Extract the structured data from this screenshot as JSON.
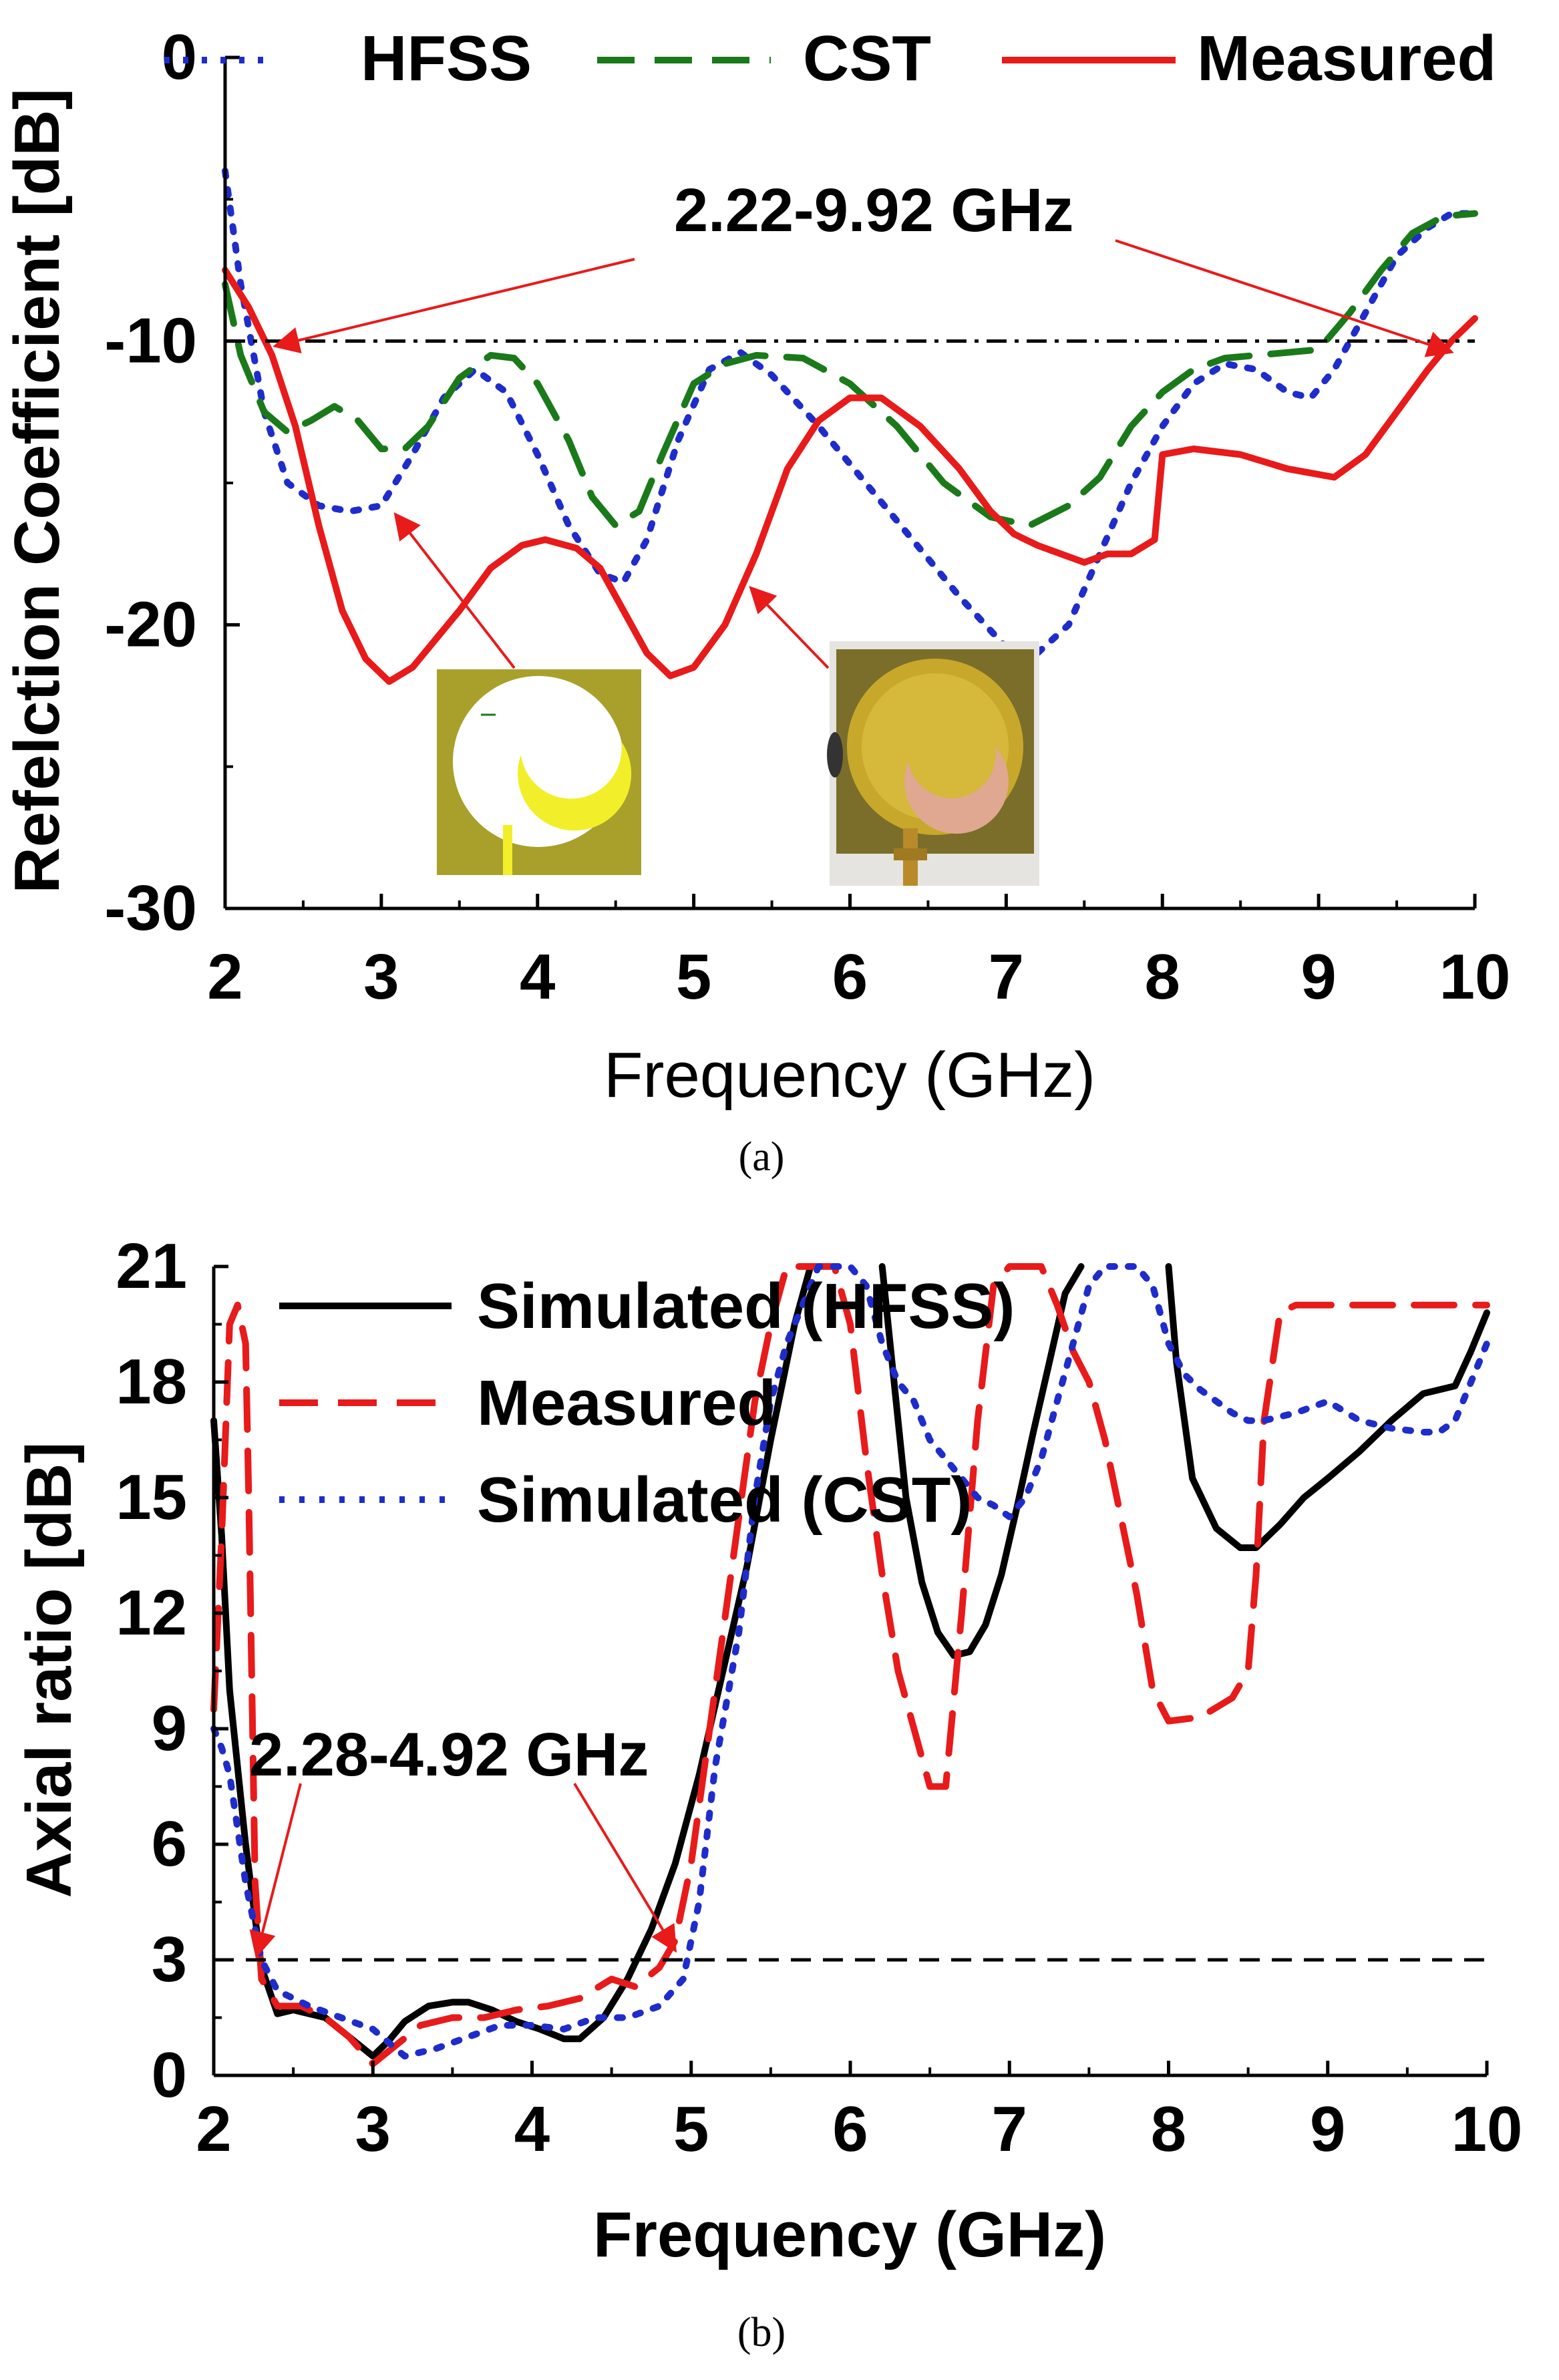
{
  "chart_data": [
    {
      "type": "line",
      "panel_caption": "(a)",
      "xlabel": "Frequency (GHz)",
      "ylabel": "Refelction Coefficient [dB]",
      "xlim": [
        2,
        10
      ],
      "ylim": [
        -30,
        0
      ],
      "xticks": [
        "2",
        "3",
        "4",
        "5",
        "6",
        "7",
        "8",
        "9",
        "10"
      ],
      "yticks": [
        "0",
        "-10",
        "-20",
        "-30"
      ],
      "reference_line": {
        "y": -10,
        "style": "dash-dot"
      },
      "annotation": "2.22-9.92 GHz",
      "annotation_arrows_to": [
        [
          2.22,
          -10
        ],
        [
          9.92,
          -10
        ]
      ],
      "insets": [
        "simulated-antenna-layout",
        "fabricated-antenna-photo"
      ],
      "legend": [
        "HFSS",
        "CST",
        "Measured"
      ],
      "series": [
        {
          "name": "HFSS",
          "color": "#1f2ccc",
          "style": "dotted",
          "x": [
            2.0,
            2.1,
            2.25,
            2.4,
            2.6,
            2.8,
            3.0,
            3.2,
            3.4,
            3.6,
            3.8,
            4.0,
            4.2,
            4.4,
            4.55,
            4.7,
            4.9,
            5.1,
            5.3,
            5.5,
            5.8,
            6.1,
            6.4,
            6.7,
            7.0,
            7.2,
            7.4,
            7.6,
            7.8,
            8.0,
            8.2,
            8.4,
            8.6,
            8.8,
            8.95,
            9.1,
            9.3,
            9.5,
            9.7,
            9.85,
            10.0
          ],
          "y": [
            -4,
            -8,
            -12.5,
            -15,
            -15.8,
            -16,
            -15.8,
            -14,
            -12,
            -11,
            -11.8,
            -14,
            -16.5,
            -18.2,
            -18.5,
            -17,
            -13.5,
            -11,
            -10.4,
            -11.2,
            -13,
            -15,
            -17,
            -19,
            -20.8,
            -21,
            -20,
            -17.5,
            -15,
            -13,
            -11.5,
            -10.8,
            -11,
            -11.8,
            -12,
            -11,
            -9,
            -7,
            -6,
            -5.5,
            -5.5
          ]
        },
        {
          "name": "CST",
          "color": "#1a7a1a",
          "style": "dashed",
          "x": [
            2.0,
            2.1,
            2.25,
            2.4,
            2.55,
            2.7,
            2.85,
            3.0,
            3.15,
            3.3,
            3.5,
            3.7,
            3.85,
            4.0,
            4.2,
            4.35,
            4.5,
            4.65,
            4.8,
            5.0,
            5.2,
            5.4,
            5.7,
            6.0,
            6.3,
            6.6,
            6.9,
            7.15,
            7.4,
            7.6,
            7.8,
            8.0,
            8.2,
            8.4,
            8.6,
            8.8,
            9.0,
            9.2,
            9.4,
            9.6,
            9.8,
            10.0
          ],
          "y": [
            -8,
            -10.5,
            -12.5,
            -13.2,
            -12.8,
            -12.3,
            -12.8,
            -13.8,
            -13.8,
            -13,
            -11.3,
            -10.5,
            -10.6,
            -11.5,
            -13.5,
            -15.5,
            -16.5,
            -16,
            -14,
            -11.5,
            -10.8,
            -10.5,
            -10.6,
            -11.5,
            -13,
            -15,
            -16.2,
            -16.5,
            -15.8,
            -14.8,
            -13,
            -11.8,
            -11,
            -10.6,
            -10.5,
            -10.4,
            -10.3,
            -9,
            -7.5,
            -6.2,
            -5.6,
            -5.5
          ]
        },
        {
          "name": "Measured",
          "color": "#e81a1a",
          "style": "solid",
          "x": [
            2.0,
            2.15,
            2.3,
            2.45,
            2.6,
            2.75,
            2.9,
            3.05,
            3.2,
            3.35,
            3.5,
            3.7,
            3.9,
            4.05,
            4.25,
            4.4,
            4.55,
            4.7,
            4.85,
            5.0,
            5.2,
            5.4,
            5.6,
            5.8,
            6.0,
            6.2,
            6.45,
            6.7,
            6.9,
            7.05,
            7.2,
            7.35,
            7.5,
            7.65,
            7.8,
            7.95,
            8.0,
            8.2,
            8.5,
            8.8,
            9.1,
            9.3,
            9.5,
            9.7,
            9.85,
            10.0
          ],
          "y": [
            -7.5,
            -8.8,
            -10.5,
            -13,
            -16.5,
            -19.5,
            -21.2,
            -22,
            -21.5,
            -20.5,
            -19.5,
            -18,
            -17.2,
            -17,
            -17.3,
            -18,
            -19.5,
            -21,
            -21.8,
            -21.5,
            -20,
            -17.5,
            -14.5,
            -12.8,
            -12,
            -12,
            -13,
            -14.5,
            -16,
            -16.8,
            -17.2,
            -17.5,
            -17.8,
            -17.5,
            -17.5,
            -17,
            -14,
            -13.8,
            -14,
            -14.5,
            -14.8,
            -14,
            -12.5,
            -11,
            -10,
            -9.2
          ]
        }
      ]
    },
    {
      "type": "line",
      "panel_caption": "(b)",
      "xlabel": "Frequency (GHz)",
      "ylabel": "Axial ratio [dB]",
      "xlim": [
        2,
        10
      ],
      "ylim": [
        0,
        21
      ],
      "xticks": [
        "2",
        "3",
        "4",
        "5",
        "6",
        "7",
        "8",
        "9",
        "10"
      ],
      "yticks": [
        "0",
        "3",
        "6",
        "9",
        "12",
        "15",
        "18",
        "21"
      ],
      "reference_line": {
        "y": 3,
        "style": "dashed"
      },
      "annotation": "2.28-4.92 GHz",
      "annotation_arrows_to": [
        [
          2.28,
          3
        ],
        [
          4.92,
          3
        ]
      ],
      "legend": [
        "Simulated (HFSS)",
        "Measured",
        "Simulated (CST)"
      ],
      "series": [
        {
          "name": "Simulated (HFSS)",
          "color": "#000000",
          "style": "solid",
          "segments": [
            {
              "x": [
                2.0,
                2.05,
                2.1,
                2.2,
                2.3,
                2.4,
                2.5,
                2.7,
                2.85,
                3.0,
                3.1,
                3.2,
                3.35,
                3.5,
                3.6,
                3.75,
                3.9,
                4.05,
                4.2,
                4.3,
                4.45,
                4.6,
                4.75,
                4.9,
                5.05,
                5.2,
                5.35,
                5.5,
                5.65,
                5.75,
                5.8
              ],
              "y": [
                17,
                14,
                10,
                6,
                2.8,
                1.6,
                1.7,
                1.5,
                1.0,
                0.5,
                0.9,
                1.4,
                1.8,
                1.9,
                1.9,
                1.7,
                1.4,
                1.2,
                0.95,
                0.95,
                1.5,
                2.5,
                3.8,
                5.5,
                7.8,
                10.5,
                13.2,
                16.5,
                19.5,
                21,
                21
              ]
            },
            {
              "x": [
                6.2,
                6.25,
                6.35,
                6.45,
                6.55,
                6.65,
                6.75,
                6.85,
                6.95,
                7.05,
                7.15,
                7.25,
                7.35,
                7.45
              ],
              "y": [
                21,
                19,
                15,
                12.8,
                11.5,
                10.9,
                11,
                11.7,
                13,
                14.8,
                16.7,
                18.5,
                20.3,
                21
              ]
            },
            {
              "x": [
                8.0,
                8.05,
                8.15,
                8.3,
                8.45,
                8.55,
                8.7,
                8.85,
                9.0,
                9.2,
                9.4,
                9.6,
                9.8,
                9.9,
                10.0
              ],
              "y": [
                21,
                18.5,
                15.5,
                14.2,
                13.7,
                13.7,
                14.3,
                15,
                15.5,
                16.2,
                17,
                17.7,
                17.9,
                18.8,
                19.8
              ]
            }
          ]
        },
        {
          "name": "Measured",
          "color": "#e81a1a",
          "style": "dashed",
          "segments": [
            {
              "x": [
                2.0,
                2.05,
                2.1,
                2.15,
                2.2,
                2.22,
                2.24,
                2.26,
                2.3,
                2.4,
                2.55,
                2.7,
                2.85,
                3.0,
                3.15,
                3.3,
                3.5,
                3.7,
                3.9,
                4.1,
                4.3,
                4.5,
                4.65,
                4.8,
                4.9,
                5.0,
                5.1,
                5.2,
                5.3,
                5.4,
                5.5,
                5.6,
                5.7,
                5.8,
                5.9,
                6.0,
                6.1,
                6.2,
                6.3,
                6.4,
                6.5,
                6.55,
                6.6,
                6.7,
                6.8,
                6.9,
                7.0,
                7.1,
                7.2,
                7.3,
                7.4,
                7.5,
                7.6,
                7.7,
                7.8,
                7.9,
                8.0,
                8.2,
                8.4,
                8.5,
                8.55,
                8.6,
                8.7,
                8.8,
                9.0,
                9.5,
                10.0
              ],
              "y": [
                9.5,
                14,
                19.5,
                20,
                19,
                15,
                10,
                5,
                2.5,
                1.8,
                1.8,
                1.5,
                1.0,
                0.3,
                0.8,
                1.3,
                1.5,
                1.5,
                1.7,
                1.8,
                2.0,
                2.5,
                2.3,
                2.8,
                3.5,
                5.5,
                8.5,
                11.5,
                14.5,
                17.5,
                19.5,
                21,
                21,
                21,
                21,
                19.5,
                16,
                13,
                10.5,
                9,
                7.5,
                7.5,
                7.5,
                12,
                17,
                20.5,
                21,
                21,
                21,
                20,
                18.8,
                18,
                16.5,
                14.5,
                12.5,
                10,
                9.2,
                9.3,
                9.8,
                10.5,
                13,
                17,
                19.8,
                20,
                20,
                20,
                20
              ]
            }
          ]
        },
        {
          "name": "Simulated (CST)",
          "color": "#1f2ccc",
          "style": "dotted",
          "segments": [
            {
              "x": [
                2.0,
                2.05,
                2.1,
                2.2,
                2.3,
                2.4,
                2.6,
                2.8,
                3.0,
                3.2,
                3.4,
                3.6,
                3.8,
                4.0,
                4.2,
                4.4,
                4.6,
                4.8,
                4.95,
                5.05,
                5.15,
                5.3,
                5.4,
                5.5,
                5.6,
                5.7,
                5.8,
                5.85,
                6.0,
                6.1,
                6.2,
                6.3,
                6.4,
                6.5,
                6.6,
                6.7,
                6.8,
                6.9,
                7.0,
                7.1,
                7.2,
                7.3,
                7.4,
                7.5,
                7.6,
                7.7,
                7.8,
                7.9,
                8.0,
                8.1,
                8.2,
                8.3,
                8.4,
                8.5,
                8.6,
                8.8,
                9.0,
                9.2,
                9.4,
                9.6,
                9.7,
                9.8,
                9.9,
                10.0
              ],
              "y": [
                9,
                8.5,
                7.8,
                5,
                3,
                2.2,
                1.8,
                1.5,
                1.2,
                0.5,
                0.7,
                1.0,
                1.3,
                1.3,
                1.2,
                1.5,
                1.5,
                1.8,
                2.5,
                4.5,
                8,
                11.5,
                15,
                17.5,
                19,
                20,
                21,
                21,
                21,
                20.5,
                19,
                18,
                17.5,
                16.5,
                16,
                15.5,
                15,
                14.8,
                14.5,
                15,
                16,
                17.5,
                19,
                20.5,
                21,
                21,
                21,
                20.5,
                19,
                18.2,
                17.8,
                17.5,
                17.2,
                17,
                17,
                17.2,
                17.5,
                17,
                16.8,
                16.7,
                16.7,
                17,
                18,
                19
              ]
            }
          ]
        }
      ]
    }
  ]
}
